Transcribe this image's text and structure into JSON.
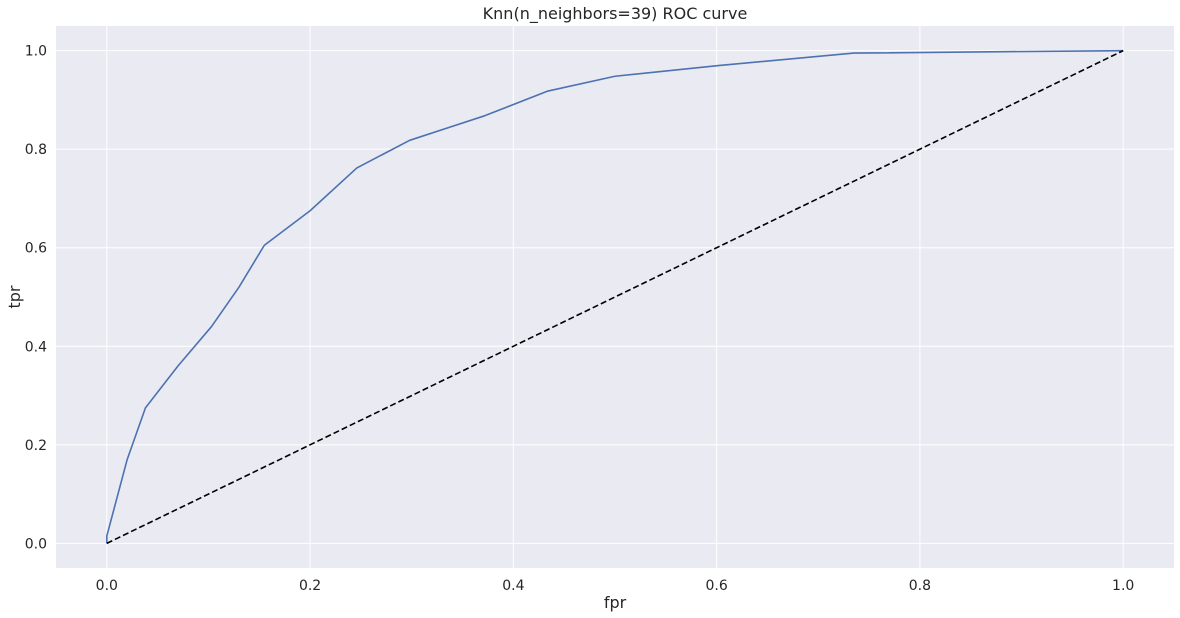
{
  "chart_data": {
    "type": "line",
    "title": "Knn(n_neighbors=39) ROC curve",
    "xlabel": "fpr",
    "ylabel": "tpr",
    "xlim": [
      -0.05,
      1.05
    ],
    "ylim": [
      -0.05,
      1.05
    ],
    "xticks": [
      0.0,
      0.2,
      0.4,
      0.6,
      0.8,
      1.0
    ],
    "yticks": [
      0.0,
      0.2,
      0.4,
      0.6,
      0.8,
      1.0
    ],
    "xtick_labels": [
      "0.0",
      "0.2",
      "0.4",
      "0.6",
      "0.8",
      "1.0"
    ],
    "ytick_labels": [
      "0.0",
      "0.2",
      "0.4",
      "0.6",
      "0.8",
      "1.0"
    ],
    "grid": true,
    "background": "#eaeaf2",
    "series": [
      {
        "color": "#4c72b0",
        "style": "solid",
        "x": [
          0.0,
          0.0,
          0.02,
          0.038,
          0.07,
          0.103,
          0.13,
          0.155,
          0.2,
          0.246,
          0.298,
          0.372,
          0.434,
          0.5,
          0.603,
          0.735,
          1.0
        ],
        "y": [
          0.0,
          0.015,
          0.17,
          0.275,
          0.36,
          0.44,
          0.52,
          0.605,
          0.675,
          0.762,
          0.818,
          0.868,
          0.918,
          0.948,
          0.97,
          0.995,
          1.0
        ]
      },
      {
        "color": "#000000",
        "style": "dashed",
        "x": [
          0.0,
          1.0
        ],
        "y": [
          0.0,
          1.0
        ]
      }
    ]
  }
}
